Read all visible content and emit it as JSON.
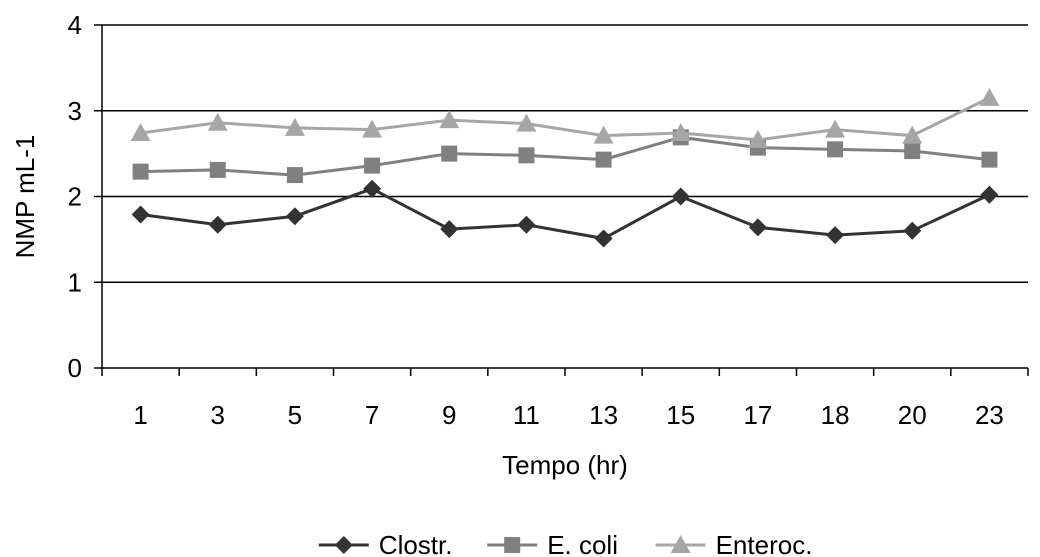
{
  "chart_data": {
    "type": "line",
    "title": "",
    "xlabel": "Tempo (hr)",
    "ylabel": "NMP mL-1",
    "categories": [
      "1",
      "3",
      "5",
      "7",
      "9",
      "11",
      "13",
      "15",
      "17",
      "18",
      "20",
      "23"
    ],
    "ylim": [
      0,
      4
    ],
    "yticks": [
      "0",
      "1",
      "2",
      "3",
      "4"
    ],
    "grid": "horizontal major lines",
    "legend_position": "bottom",
    "series": [
      {
        "name": "Clostr.",
        "marker": "diamond",
        "color": "#333333",
        "values": [
          1.79,
          1.67,
          1.77,
          2.09,
          1.62,
          1.67,
          1.51,
          2.0,
          1.64,
          1.55,
          1.6,
          2.02
        ]
      },
      {
        "name": "E. coli",
        "marker": "square",
        "color": "#808080",
        "values": [
          2.29,
          2.31,
          2.25,
          2.36,
          2.5,
          2.48,
          2.43,
          2.69,
          2.57,
          2.55,
          2.53,
          2.43
        ]
      },
      {
        "name": "Enteroc.",
        "marker": "triangle",
        "color": "#a6a6a6",
        "values": [
          2.74,
          2.86,
          2.8,
          2.78,
          2.89,
          2.85,
          2.71,
          2.74,
          2.66,
          2.78,
          2.71,
          3.15
        ]
      }
    ]
  }
}
